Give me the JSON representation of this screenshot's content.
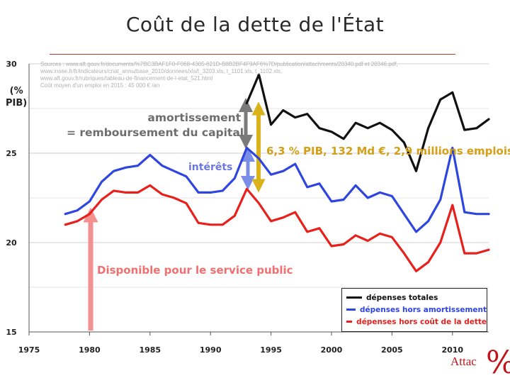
{
  "title": "Coût de la dette de l'État",
  "unit_label_line1": "(%",
  "unit_label_line2": "PIB)",
  "sources": [
    "Sources : www.aft.gouv.fr/documents/%7BC3BAF1F0-F068-4305-821D-B8B2BF4F9AF6%7D/publication/attachments/20340.pdf et 20346.pdf,",
    "www.insee.fr/fr/indicateurs/cnat_annu/base_2010/donnees/xls/t_3203.xls, t_1101.xls, t_1102.xls,",
    "www.aft.gouv.fr/rubriques/tableau-de-financement-de-l-etat_521.html",
    "Coût moyen d'un emploi en 2015 : 45 000 € /an"
  ],
  "annotations": {
    "amortissement_line1": "amortissement",
    "amortissement_line2": "= remboursement du capital",
    "interets": "intérêts",
    "total_cost": "6,3 % PIB, 132 Md €, 2,9 millions emplois",
    "service_public": "Disponible pour le service public"
  },
  "logo_text": "Attac",
  "logo_mark": "%",
  "colors": {
    "total": "#111111",
    "hors_amortissement": "#2f45e0",
    "hors_cout_dette": "#e8201c",
    "arrow_amortissement": "#7a7a7a",
    "arrow_interets": "#7a8ee8",
    "arrow_total": "#d9b21c",
    "arrow_service": "#f59090"
  },
  "chart_data": {
    "type": "line",
    "title": "Coût de la dette de l'État",
    "xlabel": "",
    "ylabel": "(% PIB)",
    "xlim": [
      1975,
      2013
    ],
    "ylim": [
      15,
      30
    ],
    "xticks": [
      1975,
      1980,
      1985,
      1990,
      1995,
      2000,
      2005,
      2010
    ],
    "yticks": [
      15,
      20,
      25,
      30
    ],
    "grid": "horizontal",
    "legend_position": "bottom-right",
    "series": [
      {
        "name": "dépenses totales",
        "color": "#111111",
        "points": [
          [
            1993,
            27.8
          ],
          [
            1994,
            29.4
          ],
          [
            1995,
            26.6
          ],
          [
            1996,
            27.4
          ],
          [
            1997,
            27.0
          ],
          [
            1998,
            27.2
          ],
          [
            1999,
            26.4
          ],
          [
            2000,
            26.2
          ],
          [
            2001,
            25.8
          ],
          [
            2002,
            26.7
          ],
          [
            2003,
            26.4
          ],
          [
            2004,
            26.7
          ],
          [
            2005,
            26.3
          ],
          [
            2006,
            25.6
          ],
          [
            2007,
            24.0
          ],
          [
            2008,
            26.4
          ],
          [
            2009,
            28.0
          ],
          [
            2010,
            28.4
          ],
          [
            2011,
            26.3
          ],
          [
            2012,
            26.4
          ],
          [
            2013,
            26.9
          ]
        ]
      },
      {
        "name": "dépenses hors amortissement",
        "color": "#2f45e0",
        "points": [
          [
            1978,
            21.6
          ],
          [
            1979,
            21.8
          ],
          [
            1980,
            22.3
          ],
          [
            1981,
            23.4
          ],
          [
            1982,
            24.0
          ],
          [
            1983,
            24.2
          ],
          [
            1984,
            24.3
          ],
          [
            1985,
            24.9
          ],
          [
            1986,
            24.3
          ],
          [
            1987,
            24.0
          ],
          [
            1988,
            23.7
          ],
          [
            1989,
            22.8
          ],
          [
            1990,
            22.8
          ],
          [
            1991,
            22.9
          ],
          [
            1992,
            23.6
          ],
          [
            1993,
            25.3
          ],
          [
            1994,
            24.7
          ],
          [
            1995,
            23.8
          ],
          [
            1996,
            24.0
          ],
          [
            1997,
            24.4
          ],
          [
            1998,
            23.1
          ],
          [
            1999,
            23.3
          ],
          [
            2000,
            22.3
          ],
          [
            2001,
            22.4
          ],
          [
            2002,
            23.2
          ],
          [
            2003,
            22.5
          ],
          [
            2004,
            22.8
          ],
          [
            2005,
            22.6
          ],
          [
            2006,
            21.6
          ],
          [
            2007,
            20.6
          ],
          [
            2008,
            21.2
          ],
          [
            2009,
            22.4
          ],
          [
            2010,
            25.3
          ],
          [
            2011,
            21.7
          ],
          [
            2012,
            21.6
          ],
          [
            2013,
            21.6
          ]
        ]
      },
      {
        "name": "dépenses hors coût de la dette",
        "color": "#e8201c",
        "points": [
          [
            1978,
            21.0
          ],
          [
            1979,
            21.2
          ],
          [
            1980,
            21.6
          ],
          [
            1981,
            22.4
          ],
          [
            1982,
            22.9
          ],
          [
            1983,
            22.8
          ],
          [
            1984,
            22.8
          ],
          [
            1985,
            23.2
          ],
          [
            1986,
            22.7
          ],
          [
            1987,
            22.5
          ],
          [
            1988,
            22.2
          ],
          [
            1989,
            21.1
          ],
          [
            1990,
            21.0
          ],
          [
            1991,
            21.0
          ],
          [
            1992,
            21.5
          ],
          [
            1993,
            23.0
          ],
          [
            1994,
            22.2
          ],
          [
            1995,
            21.2
          ],
          [
            1996,
            21.4
          ],
          [
            1997,
            21.7
          ],
          [
            1998,
            20.6
          ],
          [
            1999,
            20.8
          ],
          [
            2000,
            19.8
          ],
          [
            2001,
            19.9
          ],
          [
            2002,
            20.4
          ],
          [
            2003,
            20.1
          ],
          [
            2004,
            20.5
          ],
          [
            2005,
            20.3
          ],
          [
            2006,
            19.4
          ],
          [
            2007,
            18.4
          ],
          [
            2008,
            18.9
          ],
          [
            2009,
            20.0
          ],
          [
            2010,
            22.1
          ],
          [
            2011,
            19.4
          ],
          [
            2012,
            19.4
          ],
          [
            2013,
            19.6
          ]
        ]
      }
    ]
  }
}
